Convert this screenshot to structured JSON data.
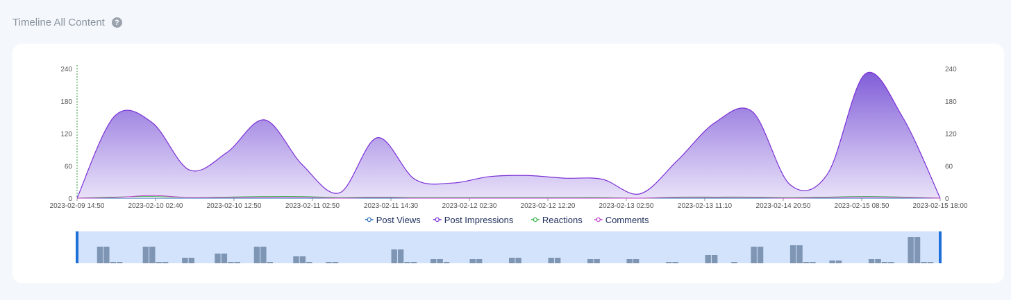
{
  "header": {
    "title": "Timeline All Content",
    "help_icon": "question-circle-icon",
    "help_glyph": "?"
  },
  "chart_data": {
    "type": "area",
    "title": "",
    "xlabel": "",
    "ylabel": "",
    "ylim": [
      0,
      240
    ],
    "yticks": [
      0,
      60,
      120,
      180,
      240
    ],
    "x_ticks": [
      "2023-02-09 14:50",
      "2023-02-10 02:40",
      "2023-02-10 12:50",
      "2023-02-11 02:50",
      "2023-02-11 14:30",
      "2023-02-12 02:30",
      "2023-02-12 12:20",
      "2023-02-13 02:50",
      "2023-02-13 11:10",
      "2023-02-14 20:50",
      "2023-02-15 08:50",
      "2023-02-15 18:00"
    ],
    "grid": false,
    "legend_position": "bottom",
    "series": [
      {
        "name": "Post Views",
        "color": "#2c6fbb",
        "values": [
          0,
          0,
          0,
          0,
          0,
          0,
          0,
          0,
          0,
          0,
          0,
          0,
          0,
          0,
          0,
          0,
          0,
          0,
          0,
          0,
          0,
          0,
          0,
          0
        ]
      },
      {
        "name": "Post Impressions",
        "color": "#7b2fd6",
        "values": [
          0,
          152,
          140,
          52,
          85,
          145,
          62,
          10,
          112,
          35,
          28,
          40,
          42,
          37,
          35,
          8,
          70,
          140,
          160,
          25,
          45,
          230,
          150,
          0
        ]
      },
      {
        "name": "Reactions",
        "color": "#38b24a",
        "values": [
          0,
          2,
          3,
          1,
          2,
          3,
          3,
          1,
          2,
          1,
          1,
          1,
          1,
          1,
          1,
          0,
          2,
          2,
          2,
          1,
          2,
          3,
          2,
          0
        ]
      },
      {
        "name": "Comments",
        "color": "#c03fc9",
        "values": [
          0,
          1,
          5,
          1,
          1,
          1,
          1,
          0,
          1,
          0,
          0,
          0,
          0,
          0,
          0,
          0,
          1,
          1,
          1,
          0,
          1,
          2,
          1,
          0
        ]
      }
    ],
    "brush": {
      "bars": [
        0,
        0,
        0,
        12,
        12,
        1,
        1,
        0,
        0,
        0,
        12,
        12,
        1,
        1,
        0,
        0,
        4,
        4,
        0,
        0,
        0,
        7,
        7,
        1,
        1,
        0,
        0,
        12,
        12,
        1,
        0,
        0,
        0,
        5,
        5,
        1,
        0,
        0,
        1,
        1,
        0,
        0,
        0,
        0,
        0,
        0,
        0,
        0,
        10,
        10,
        1,
        1,
        0,
        0,
        3,
        3,
        1,
        0,
        0,
        0,
        3,
        3,
        0,
        0,
        0,
        0,
        4,
        4,
        0,
        0,
        0,
        0,
        4,
        4,
        0,
        0,
        0,
        0,
        3,
        3,
        0,
        0,
        0,
        0,
        3,
        3,
        0,
        0,
        0,
        0,
        1,
        1,
        0,
        0,
        0,
        0,
        6,
        6,
        0,
        0,
        1,
        0,
        0,
        12,
        12,
        0,
        0,
        0,
        0,
        13,
        13,
        1,
        1,
        0,
        0,
        2,
        2,
        0,
        0,
        0,
        0,
        3,
        3,
        1,
        1,
        0,
        0,
        19,
        19,
        1,
        1,
        0
      ],
      "bar_color": "#7e96b4",
      "bg_color": "#d3e3fb",
      "handle_color": "#1f6fd8"
    }
  }
}
